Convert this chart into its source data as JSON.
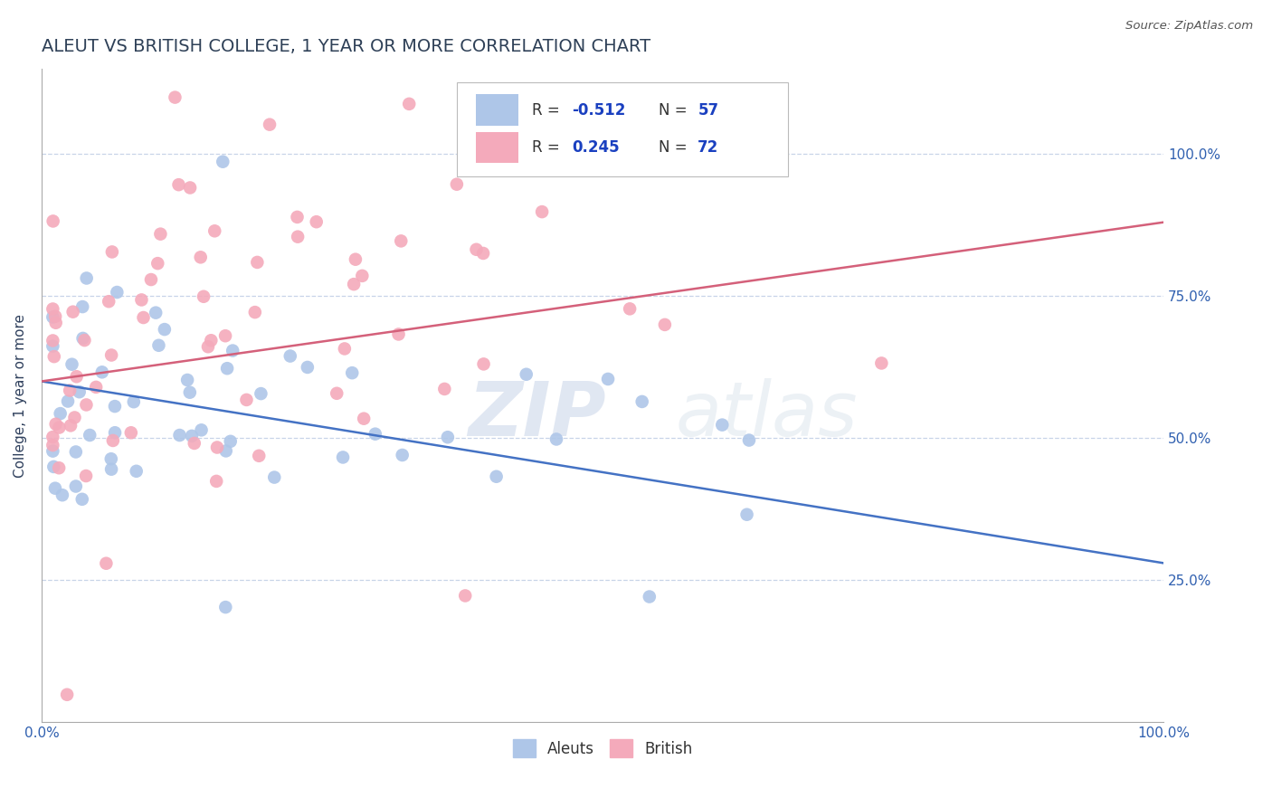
{
  "title": "ALEUT VS BRITISH COLLEGE, 1 YEAR OR MORE CORRELATION CHART",
  "source_text": "Source: ZipAtlas.com",
  "ylabel": "College, 1 year or more",
  "xlim": [
    0.0,
    1.0
  ],
  "ylim": [
    0.0,
    1.15
  ],
  "aleuts_R": -0.512,
  "aleuts_N": 57,
  "british_R": 0.245,
  "british_N": 72,
  "aleuts_color": "#aec6e8",
  "british_color": "#f4aabb",
  "aleuts_line_color": "#4472c4",
  "british_line_color": "#d4607a",
  "title_color": "#2e4057",
  "legend_R_color": "#1a40c0",
  "grid_color": "#c8d4e8",
  "aleuts_line_y0": 0.6,
  "aleuts_line_y1": 0.28,
  "british_line_y0": 0.6,
  "british_line_y1": 0.88
}
